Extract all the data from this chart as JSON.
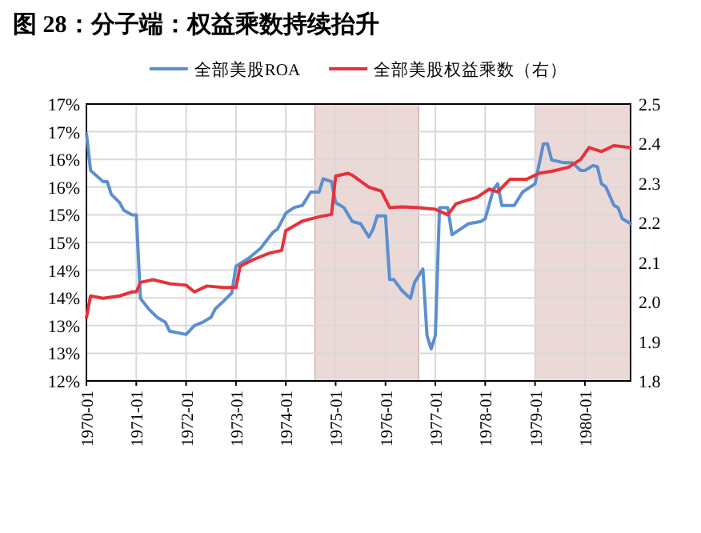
{
  "chart_data": {
    "type": "line",
    "title": "图 28：分子端：权益乘数持续抬升",
    "xlim": [
      "1970-01",
      "1980-12"
    ],
    "xticks": [
      "1970-01",
      "1971-01",
      "1972-01",
      "1973-01",
      "1974-01",
      "1975-01",
      "1976-01",
      "1977-01",
      "1978-01",
      "1979-01",
      "1980-01"
    ],
    "ylim": [
      12,
      17
    ],
    "yticks": [
      {
        "value": 12,
        "label": "12%"
      },
      {
        "value": 12.5,
        "label": "13%"
      },
      {
        "value": 13,
        "label": "13%"
      },
      {
        "value": 13.5,
        "label": "14%"
      },
      {
        "value": 14,
        "label": "14%"
      },
      {
        "value": 14.5,
        "label": "15%"
      },
      {
        "value": 15,
        "label": "15%"
      },
      {
        "value": 15.5,
        "label": "16%"
      },
      {
        "value": 16,
        "label": "16%"
      },
      {
        "value": 16.5,
        "label": "17%"
      },
      {
        "value": 17,
        "label": "17%"
      }
    ],
    "y2lim": [
      1.8,
      2.5
    ],
    "y2ticks": [
      {
        "value": 1.8,
        "label": "1.8"
      },
      {
        "value": 1.9,
        "label": "1.9"
      },
      {
        "value": 2.0,
        "label": "2.0"
      },
      {
        "value": 2.1,
        "label": "2.1"
      },
      {
        "value": 2.2,
        "label": "2.2"
      },
      {
        "value": 2.3,
        "label": "2.3"
      },
      {
        "value": 2.4,
        "label": "2.4"
      },
      {
        "value": 2.5,
        "label": "2.5"
      }
    ],
    "grid": true,
    "legend": "top",
    "marker": "none",
    "line_style": "solid",
    "bands": [
      {
        "axis": "x",
        "from": "1974-08",
        "to": "1976-09",
        "color": "#ebd9d8"
      },
      {
        "axis": "x",
        "from": "1979-01",
        "to": "1980-12",
        "color": "#ebd9d8"
      }
    ],
    "series": [
      {
        "name": "全部美股ROA",
        "color": "#5b8fd0",
        "x": [
          "1970-01",
          "1970-02",
          "1970-05",
          "1970-06",
          "1970-07",
          "1970-09",
          "1970-10",
          "1970-12",
          "1971-01",
          "1971-02",
          "1971-04",
          "1971-06",
          "1971-08",
          "1971-09",
          "1972-01",
          "1972-03",
          "1972-05",
          "1972-07",
          "1972-08",
          "1972-10",
          "1972-12",
          "1973-01",
          "1973-04",
          "1973-07",
          "1973-08",
          "1973-10",
          "1973-11",
          "1974-01",
          "1974-03",
          "1974-05",
          "1974-07",
          "1974-09",
          "1974-10",
          "1974-12",
          "1975-01",
          "1975-03",
          "1975-05",
          "1975-07",
          "1975-09",
          "1975-10",
          "1975-11",
          "1976-01",
          "1976-02",
          "1976-03",
          "1976-05",
          "1976-07",
          "1976-08",
          "1976-10",
          "1976-11",
          "1976-12",
          "1977-01",
          "1977-02",
          "1977-04",
          "1977-05",
          "1977-07",
          "1977-09",
          "1977-12",
          "1978-01",
          "1978-03",
          "1978-04",
          "1978-05",
          "1978-08",
          "1978-10",
          "1979-01",
          "1979-03",
          "1979-04",
          "1979-05",
          "1979-08",
          "1979-10",
          "1979-12",
          "1980-01",
          "1980-03",
          "1980-04",
          "1980-05",
          "1980-06",
          "1980-08",
          "1980-09",
          "1980-10",
          "1980-12"
        ],
        "values": [
          16.47,
          15.8,
          15.6,
          15.6,
          15.37,
          15.22,
          15.08,
          15.0,
          15.0,
          13.49,
          13.3,
          13.15,
          13.06,
          12.9,
          12.84,
          13.0,
          13.06,
          13.15,
          13.3,
          13.44,
          13.59,
          14.07,
          14.21,
          14.4,
          14.5,
          14.69,
          14.74,
          15.03,
          15.13,
          15.17,
          15.41,
          15.41,
          15.65,
          15.6,
          15.22,
          15.13,
          14.88,
          14.84,
          14.6,
          14.74,
          14.98,
          14.98,
          13.83,
          13.83,
          13.63,
          13.49,
          13.78,
          14.02,
          12.82,
          12.58,
          12.82,
          15.13,
          15.13,
          14.64,
          14.74,
          14.84,
          14.88,
          14.93,
          15.46,
          15.56,
          15.17,
          15.17,
          15.41,
          15.56,
          16.28,
          16.28,
          15.99,
          15.94,
          15.94,
          15.8,
          15.8,
          15.89,
          15.87,
          15.56,
          15.51,
          15.17,
          15.13,
          14.93,
          14.84
        ]
      },
      {
        "name": "全部美股权益乘数（右）",
        "color": "#e8313a",
        "axis": "y2",
        "x": [
          "1970-01",
          "1970-02",
          "1970-05",
          "1970-09",
          "1970-12",
          "1971-01",
          "1971-02",
          "1971-05",
          "1971-09",
          "1972-01",
          "1972-03",
          "1972-06",
          "1972-10",
          "1973-01",
          "1973-02",
          "1973-05",
          "1973-09",
          "1973-12",
          "1974-01",
          "1974-05",
          "1974-09",
          "1974-12",
          "1975-01",
          "1975-04",
          "1975-05",
          "1975-09",
          "1975-12",
          "1976-02",
          "1976-05",
          "1976-09",
          "1977-01",
          "1977-04",
          "1977-06",
          "1977-09",
          "1977-11",
          "1978-02",
          "1978-04",
          "1978-07",
          "1978-11",
          "1979-02",
          "1979-05",
          "1979-09",
          "1979-12",
          "1980-02",
          "1980-05",
          "1980-08",
          "1980-12"
        ],
        "values": [
          1.96,
          2.015,
          2.009,
          2.015,
          2.025,
          2.025,
          2.049,
          2.056,
          2.046,
          2.042,
          2.025,
          2.04,
          2.036,
          2.036,
          2.09,
          2.106,
          2.123,
          2.13,
          2.18,
          2.204,
          2.215,
          2.221,
          2.318,
          2.325,
          2.32,
          2.29,
          2.28,
          2.238,
          2.24,
          2.238,
          2.234,
          2.22,
          2.248,
          2.258,
          2.264,
          2.285,
          2.278,
          2.31,
          2.31,
          2.325,
          2.33,
          2.34,
          2.36,
          2.39,
          2.38,
          2.395,
          2.39
        ]
      }
    ]
  }
}
